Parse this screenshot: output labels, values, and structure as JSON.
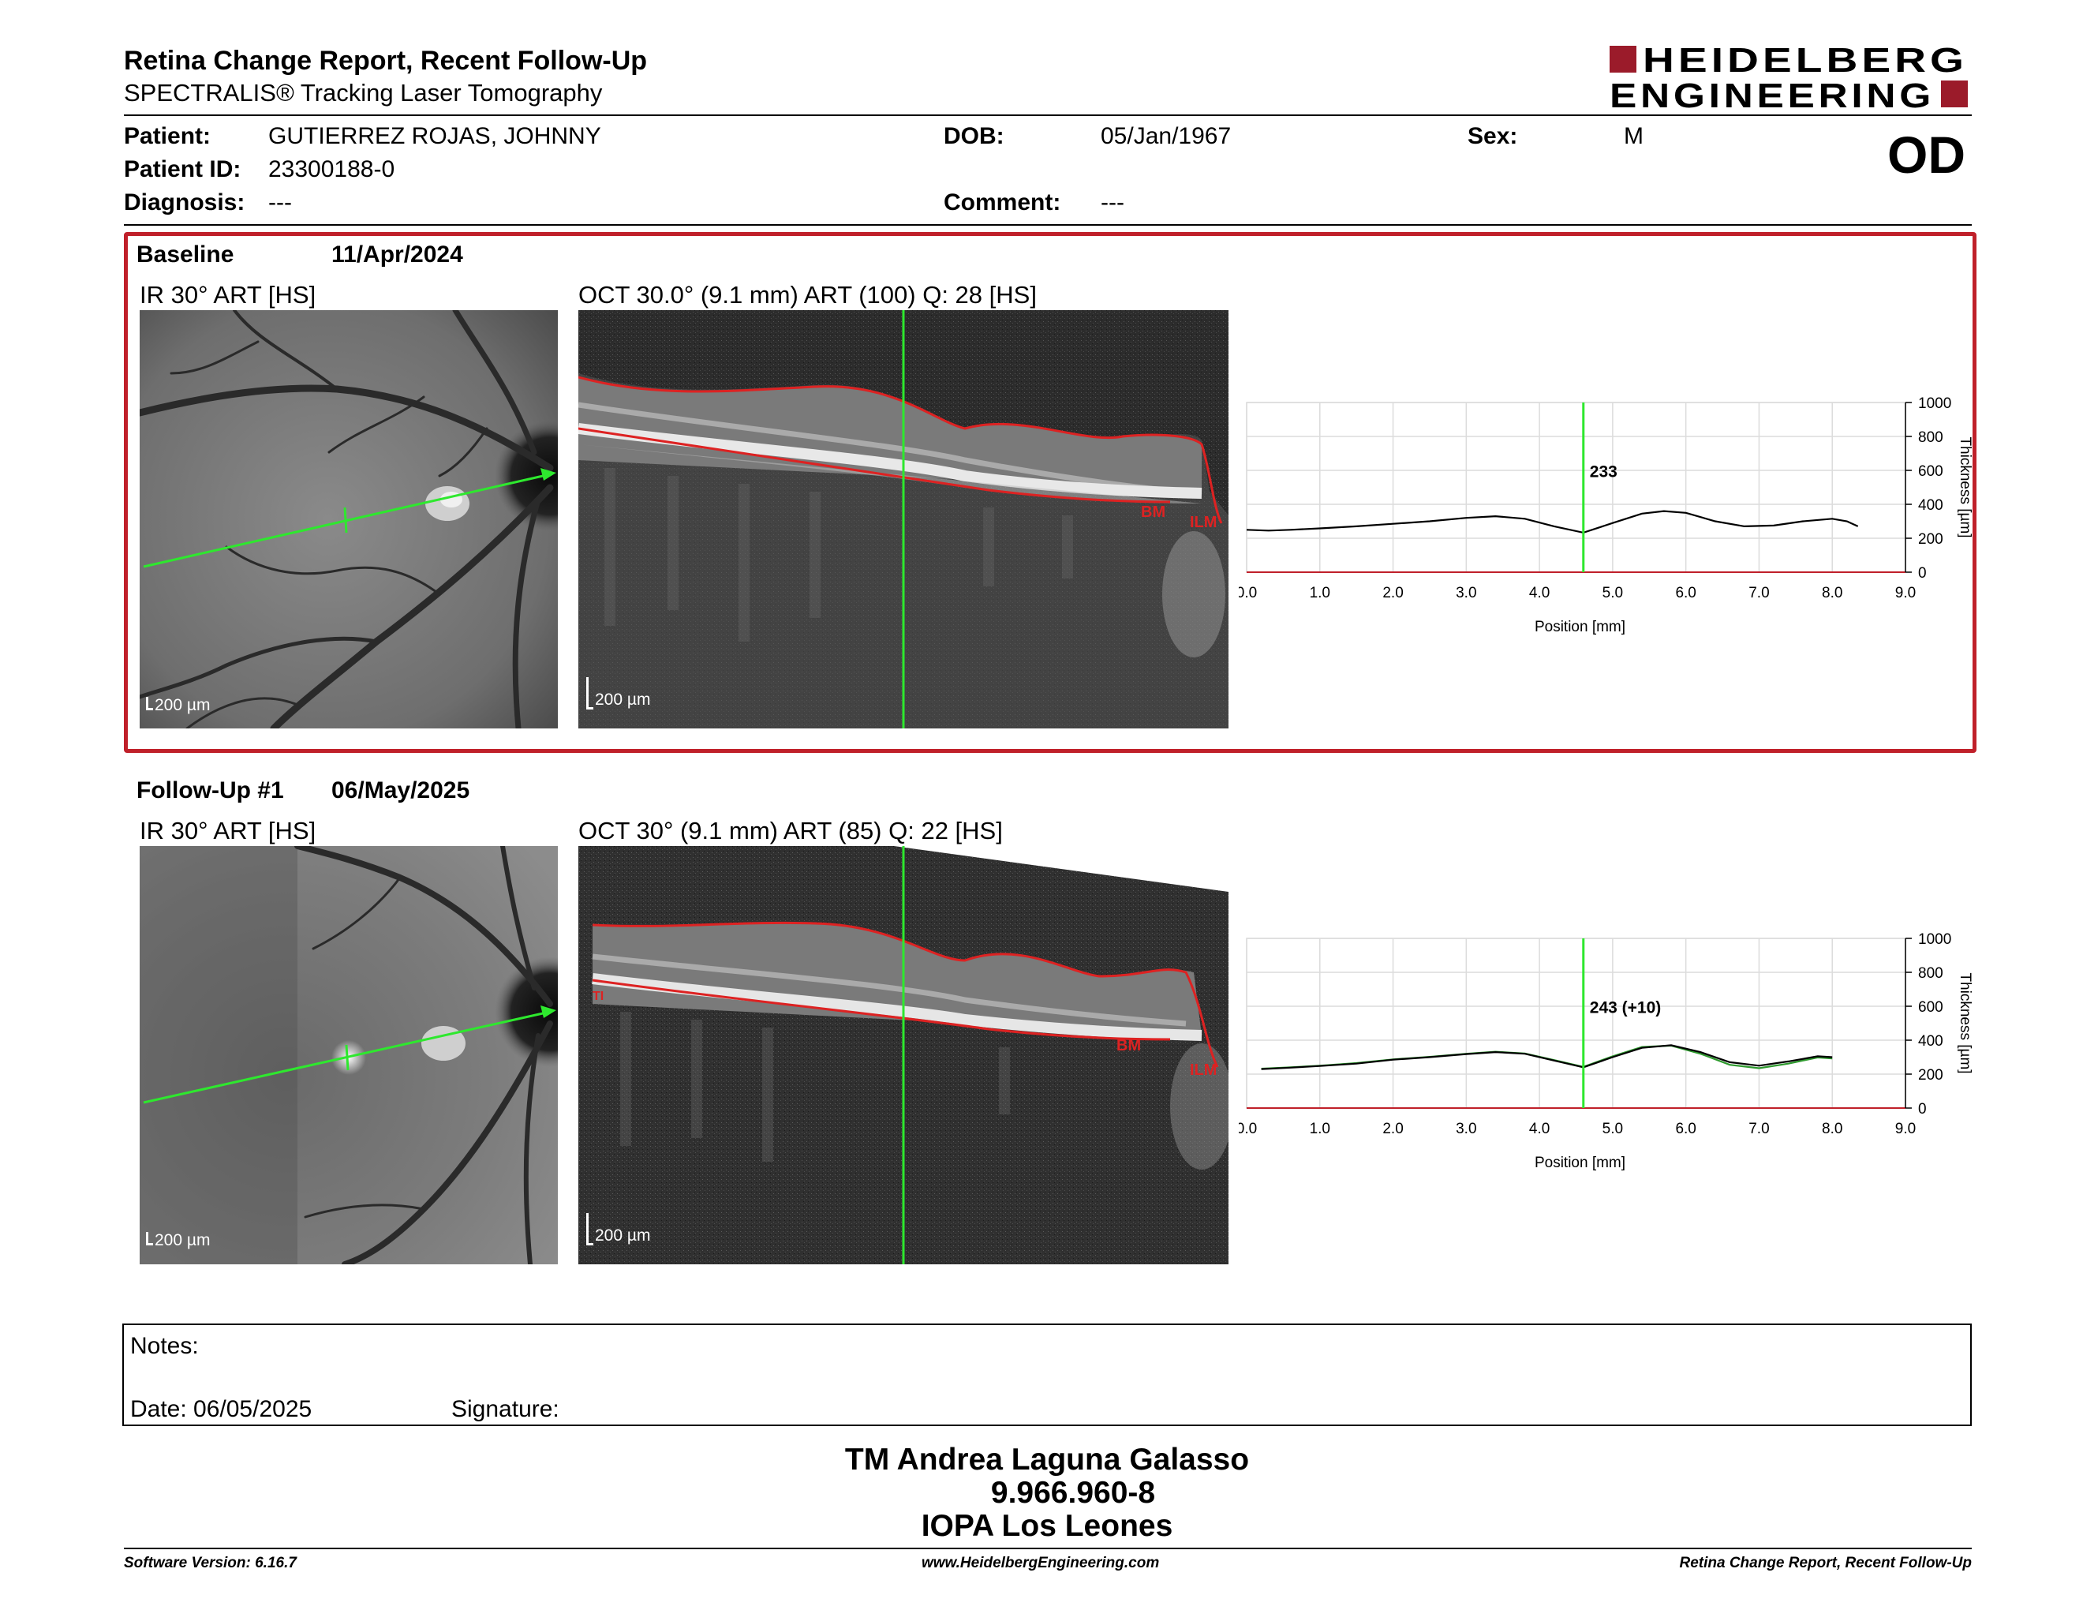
{
  "header": {
    "title": "Retina Change Report, Recent Follow-Up",
    "subtitle": "SPECTRALIS® Tracking Laser Tomography",
    "logo_line1": "HEIDELBERG",
    "logo_line2": "ENGINEERING",
    "eye": "OD"
  },
  "patient": {
    "patient_label": "Patient:",
    "patient_value": "GUTIERREZ ROJAS, JOHNNY",
    "id_label": "Patient ID:",
    "id_value": "23300188-0",
    "diagnosis_label": "Diagnosis:",
    "diagnosis_value": "---",
    "dob_label": "DOB:",
    "dob_value": "05/Jan/1967",
    "comment_label": "Comment:",
    "comment_value": "---",
    "sex_label": "Sex:",
    "sex_value": "M"
  },
  "exams": [
    {
      "label": "Baseline",
      "date": "11/Apr/2024",
      "ir_label": "IR 30° ART [HS]",
      "oct_label": "OCT 30.0° (9.1 mm) ART (100) Q: 28 [HS]",
      "ir_scale": "200 µm",
      "oct_scale": "200 µm",
      "layer_bm": "BM",
      "layer_ilm": "ILM",
      "cursor_value": "233"
    },
    {
      "label": "Follow-Up #1",
      "date": "06/May/2025",
      "ir_label": "IR 30° ART [HS]",
      "oct_label": "OCT 30° (9.1 mm) ART (85) Q: 22 [HS]",
      "ir_scale": "200 µm",
      "oct_scale": "200 µm",
      "layer_bm": "BM",
      "layer_ilm": "ILM",
      "cursor_value": "243 (+10)"
    }
  ],
  "chart_data": [
    {
      "type": "line",
      "xlabel": "Position [mm]",
      "ylabel": "Thickness [µm]",
      "xlim": [
        0,
        9.0
      ],
      "ylim": [
        0,
        1000
      ],
      "xticks": [
        "0.0",
        "1.0",
        "2.0",
        "3.0",
        "4.0",
        "5.0",
        "6.0",
        "7.0",
        "8.0",
        "9.0"
      ],
      "yticks": [
        "0",
        "200",
        "400",
        "600",
        "800",
        "1000"
      ],
      "cursor_x": 4.6,
      "cursor_label": "233",
      "series": [
        {
          "x": [
            0.0,
            0.3,
            0.6,
            1.0,
            1.5,
            2.0,
            2.5,
            3.0,
            3.4,
            3.8,
            4.2,
            4.6,
            5.0,
            5.4,
            5.7,
            6.0,
            6.4,
            6.8,
            7.2,
            7.6,
            8.0,
            8.2,
            8.35
          ],
          "y": [
            250,
            245,
            250,
            258,
            270,
            285,
            300,
            320,
            330,
            315,
            270,
            233,
            290,
            345,
            360,
            350,
            300,
            270,
            275,
            300,
            315,
            300,
            270
          ]
        }
      ]
    },
    {
      "type": "line",
      "xlabel": "Position [mm]",
      "ylabel": "Thickness [µm]",
      "xlim": [
        0,
        9.0
      ],
      "ylim": [
        0,
        1000
      ],
      "xticks": [
        "0.0",
        "1.0",
        "2.0",
        "3.0",
        "4.0",
        "5.0",
        "6.0",
        "7.0",
        "8.0",
        "9.0"
      ],
      "yticks": [
        "0",
        "200",
        "400",
        "600",
        "800",
        "1000"
      ],
      "cursor_x": 4.6,
      "cursor_label": "243 (+10)",
      "series": [
        {
          "x": [
            0.2,
            0.6,
            1.0,
            1.5,
            2.0,
            2.5,
            3.0,
            3.4,
            3.8,
            4.2,
            4.6,
            5.0,
            5.4,
            5.8,
            6.2,
            6.6,
            7.0,
            7.4,
            7.8,
            8.0
          ],
          "y": [
            230,
            238,
            248,
            262,
            285,
            300,
            318,
            330,
            320,
            280,
            240,
            300,
            355,
            370,
            330,
            270,
            250,
            275,
            305,
            300
          ]
        },
        {
          "x": [
            0.2,
            0.6,
            1.0,
            1.5,
            2.0,
            2.5,
            3.0,
            3.4,
            3.8,
            4.2,
            4.6,
            5.0,
            5.4,
            5.8,
            6.2,
            6.6,
            7.0,
            7.4,
            7.8,
            8.0
          ],
          "y": [
            232,
            240,
            250,
            265,
            287,
            302,
            320,
            332,
            322,
            283,
            243,
            305,
            360,
            368,
            320,
            255,
            235,
            262,
            298,
            292
          ]
        }
      ],
      "colors": [
        "#000000",
        "#2e9a2e"
      ]
    }
  ],
  "notes": {
    "notes_label": "Notes:",
    "date_label": "Date: 06/05/2025",
    "signature_label": "Signature:"
  },
  "signatory": {
    "name": "TM Andrea Laguna Galasso",
    "id": "9.966.960-8",
    "org": "IOPA Los Leones"
  },
  "footer": {
    "software": "Software Version: 6.16.7",
    "website": "www.HeidelbergEngineering.com",
    "report": "Retina Change Report, Recent Follow-Up"
  }
}
